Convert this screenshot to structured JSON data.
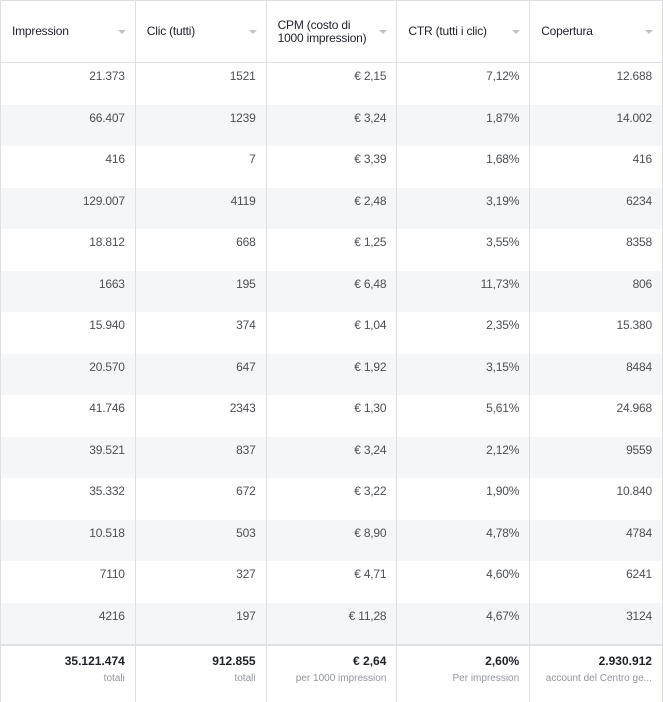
{
  "columns": [
    "Impression",
    "Clic (tutti)",
    "CPM (costo di 1000 impression)",
    "CTR (tutti i clic)",
    "Copertura"
  ],
  "rows": [
    [
      "21.373",
      "1521",
      "€ 2,15",
      "7,12%",
      "12.688"
    ],
    [
      "66.407",
      "1239",
      "€ 3,24",
      "1,87%",
      "14.002"
    ],
    [
      "416",
      "7",
      "€ 3,39",
      "1,68%",
      "416"
    ],
    [
      "129.007",
      "4119",
      "€ 2,48",
      "3,19%",
      "6234"
    ],
    [
      "18.812",
      "668",
      "€ 1,25",
      "3,55%",
      "8358"
    ],
    [
      "1663",
      "195",
      "€ 6,48",
      "11,73%",
      "806"
    ],
    [
      "15.940",
      "374",
      "€ 1,04",
      "2,35%",
      "15.380"
    ],
    [
      "20.570",
      "647",
      "€ 1,92",
      "3,15%",
      "8484"
    ],
    [
      "41.746",
      "2343",
      "€ 1,30",
      "5,61%",
      "24.968"
    ],
    [
      "39.521",
      "837",
      "€ 3,24",
      "2,12%",
      "9559"
    ],
    [
      "35.332",
      "672",
      "€ 3,22",
      "1,90%",
      "10.840"
    ],
    [
      "10.518",
      "503",
      "€ 8,90",
      "4,78%",
      "4784"
    ],
    [
      "7110",
      "327",
      "€ 4,71",
      "4,60%",
      "6241"
    ],
    [
      "4216",
      "197",
      "€ 11,28",
      "4,67%",
      "3124"
    ]
  ],
  "totals": [
    {
      "value": "35.121.474",
      "label": "totali"
    },
    {
      "value": "912.855",
      "label": "totali"
    },
    {
      "value": "€ 2,64",
      "label": "per 1000 impression"
    },
    {
      "value": "2,60%",
      "label": "Per impression"
    },
    {
      "value": "2.930.912",
      "label": "account del Centro ge..."
    }
  ]
}
